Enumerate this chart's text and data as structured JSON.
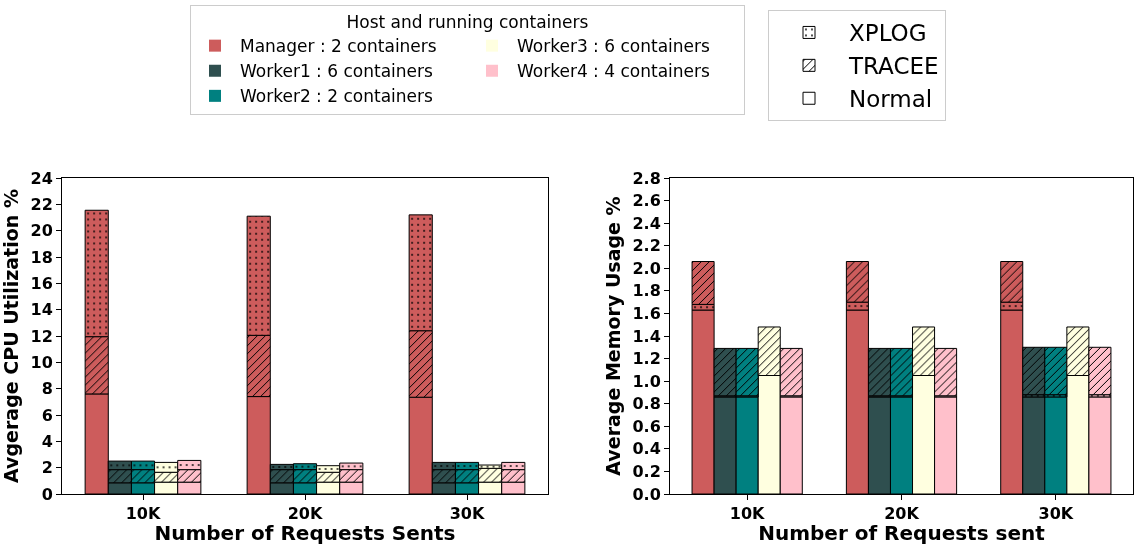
{
  "chart_data": [
    {
      "type": "bar",
      "stacked": true,
      "categories": [
        null,
        null,
        "10K",
        null,
        null,
        null,
        null,
        null,
        null,
        "20K",
        null,
        null,
        null,
        null,
        null,
        null,
        "30K",
        null,
        null
      ],
      "xlabel": "Number of Requests Sents",
      "ylabel": "Avgerage CPU Utilization %",
      "ylim": [
        0,
        24
      ],
      "yticks": [
        0,
        2,
        4,
        6,
        8,
        10,
        12,
        14,
        16,
        18,
        20,
        22,
        24
      ],
      "legend": "top",
      "legend_title": "Host and running containers",
      "series": [
        {
          "name": "Normal",
          "color": "#ffffff",
          "colors": [
            "#cd5c5c",
            "#2f4f4f",
            "#008080",
            "#ffffe0",
            "#ffc0cb",
            null,
            null,
            "#cd5c5c",
            "#2f4f4f",
            "#008080",
            "#ffffe0",
            "#ffc0cb",
            null,
            null,
            "#cd5c5c",
            "#2f4f4f",
            "#008080",
            "#ffffe0",
            "#ffc0cb"
          ],
          "values": [
            7.6,
            0.85,
            0.85,
            0.9,
            0.9,
            null,
            null,
            7.4,
            0.85,
            0.85,
            0.9,
            0.9,
            null,
            null,
            7.35,
            0.85,
            0.85,
            0.9,
            0.9
          ]
        },
        {
          "name": "TRACEE",
          "color": "#ffffff",
          "colors": [
            "#cd5c5c",
            "#2f4f4f",
            "#008080",
            "#ffffe0",
            "#ffc0cb",
            null,
            null,
            "#cd5c5c",
            "#2f4f4f",
            "#008080",
            "#ffffe0",
            "#ffc0cb",
            null,
            null,
            "#cd5c5c",
            "#2f4f4f",
            "#008080",
            "#ffffe0",
            "#ffc0cb"
          ],
          "values": [
            4.35,
            1.0,
            1.0,
            0.75,
            0.95,
            null,
            null,
            4.65,
            1.0,
            1.0,
            0.75,
            0.95,
            null,
            null,
            5.05,
            1.0,
            1.0,
            1.05,
            0.95
          ]
        },
        {
          "name": "XPLOG",
          "color": "#ffffff",
          "colors": [
            "#cd5c5c",
            "#2f4f4f",
            "#008080",
            "#ffffe0",
            "#ffc0cb",
            null,
            null,
            "#cd5c5c",
            "#2f4f4f",
            "#008080",
            "#ffffe0",
            "#ffc0cb",
            null,
            null,
            "#cd5c5c",
            "#2f4f4f",
            "#008080",
            "#ffffe0",
            "#ffc0cb"
          ],
          "values": [
            9.6,
            0.65,
            0.65,
            0.75,
            0.7,
            null,
            null,
            9.05,
            0.4,
            0.45,
            0.5,
            0.5,
            null,
            null,
            8.8,
            0.55,
            0.55,
            0.25,
            0.55
          ]
        },
        {
          "name": "Manager : 2 containers",
          "color": "#cd5c5c",
          "values": [
            null,
            null,
            null,
            null,
            null,
            null,
            null,
            null,
            null,
            null,
            null,
            null,
            null,
            null,
            null,
            null,
            null,
            null,
            null
          ]
        },
        {
          "name": "Worker1 : 6 containers",
          "color": "#2f4f4f",
          "values": [
            null,
            null,
            null,
            null,
            null,
            null,
            null,
            null,
            null,
            null,
            null,
            null,
            null,
            null,
            null,
            null,
            null,
            null,
            null
          ]
        },
        {
          "name": "Worker2 : 2 containers",
          "color": "#008080",
          "values": [
            null,
            null,
            null,
            null,
            null,
            null,
            null,
            null,
            null,
            null,
            null,
            null,
            null,
            null,
            null,
            null,
            null,
            null,
            null
          ]
        },
        {
          "name": "Worker3 : 6 containers",
          "color": "#ffffe0",
          "values": [
            null,
            null,
            null,
            null,
            null,
            null,
            null,
            null,
            null,
            null,
            null,
            null,
            null,
            null,
            null,
            null,
            null,
            null,
            null
          ]
        },
        {
          "name": "Worker4 : 4 containers",
          "color": "#ffc0cb",
          "values": [
            null,
            null,
            null,
            null,
            null,
            null,
            null,
            null,
            null,
            null,
            null,
            null,
            null,
            null,
            null,
            null,
            null,
            null,
            null
          ]
        }
      ]
    },
    {
      "type": "bar",
      "stacked": true,
      "categories": [
        null,
        null,
        "10K",
        null,
        null,
        null,
        null,
        null,
        null,
        "20K",
        null,
        null,
        null,
        null,
        null,
        null,
        "30K",
        null,
        null
      ],
      "xlabel": "Number of Requests sent",
      "ylabel": "Average Memory Usage %",
      "ylim": [
        0,
        2.8
      ],
      "yticks": [
        {
          "value": 0,
          "label": "0.0"
        },
        0.2,
        0.4,
        0.6,
        0.8,
        {
          "value": 1,
          "label": "1.0"
        },
        1.2,
        1.4,
        1.6,
        1.8,
        {
          "value": 2,
          "label": "2.0"
        },
        2.2,
        2.4,
        2.6,
        2.8
      ],
      "series": [
        {
          "colors": [
            "#cd5c5c",
            "#2f4f4f",
            "#008080",
            "#ffffe0",
            "#ffc0cb",
            null,
            null,
            "#cd5c5c",
            "#2f4f4f",
            "#008080",
            "#ffffe0",
            "#ffc0cb",
            null,
            null,
            "#cd5c5c",
            "#2f4f4f",
            "#008080",
            "#ffffe0",
            "#ffc0cb"
          ],
          "values": [
            1.63,
            0.86,
            0.86,
            1.05,
            0.86,
            null,
            null,
            1.63,
            0.86,
            0.86,
            1.05,
            0.86,
            null,
            null,
            1.63,
            0.86,
            0.86,
            1.05,
            0.86
          ]
        },
        {
          "colors": [
            "#cd5c5c",
            "#2f4f4f",
            "#008080",
            null,
            "#ffc0cb",
            null,
            null,
            "#cd5c5c",
            "#2f4f4f",
            "#008080",
            null,
            "#ffc0cb",
            null,
            null,
            "#cd5c5c",
            "#2f4f4f",
            "#008080",
            null,
            "#ffc0cb"
          ],
          "values": [
            0.05,
            0.01,
            0.01,
            null,
            0.01,
            null,
            null,
            0.07,
            0.01,
            0.01,
            null,
            0.01,
            null,
            null,
            0.07,
            0.02,
            0.02,
            null,
            0.02
          ]
        },
        {
          "colors": [
            "#cd5c5c",
            "#2f4f4f",
            "#008080",
            "#ffffe0",
            "#ffc0cb",
            null,
            null,
            "#cd5c5c",
            "#2f4f4f",
            "#008080",
            "#ffffe0",
            "#ffc0cb",
            null,
            null,
            "#cd5c5c",
            "#2f4f4f",
            "#008080",
            "#ffffe0",
            "#ffc0cb"
          ],
          "values": [
            0.38,
            0.42,
            0.42,
            0.43,
            0.42,
            null,
            null,
            0.36,
            0.42,
            0.42,
            0.43,
            0.42,
            null,
            null,
            0.36,
            0.42,
            0.42,
            0.43,
            0.42
          ]
        }
      ]
    }
  ]
}
